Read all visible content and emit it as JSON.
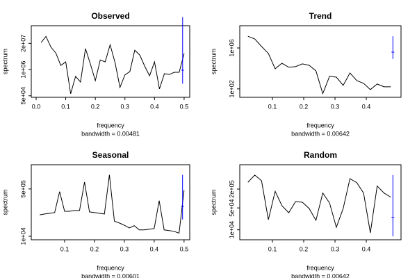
{
  "chart_data": [
    {
      "type": "line",
      "title": "Observed",
      "xlabel": "frequency",
      "ylabel": "spectrum",
      "subtitle": "bandwidth = 0.00481",
      "log_y": true,
      "color": "#000000",
      "x": [
        0.0167,
        0.0333,
        0.05,
        0.0667,
        0.0833,
        0.1,
        0.1167,
        0.1333,
        0.15,
        0.1667,
        0.1833,
        0.2,
        0.2167,
        0.2333,
        0.25,
        0.2667,
        0.2833,
        0.3,
        0.3167,
        0.3333,
        0.35,
        0.3667,
        0.3833,
        0.4,
        0.4167,
        0.4333,
        0.45,
        0.4667,
        0.4833,
        0.5
      ],
      "values": [
        22000000,
        44000000,
        13000000,
        6600000,
        1600000,
        2400000,
        63000,
        460000,
        240000,
        11000000,
        1900000,
        280000,
        3000000,
        2400000,
        17000000,
        2200000,
        130000,
        540000,
        800000,
        9100000,
        5300000,
        1500000,
        490000,
        2400000,
        110000,
        620000,
        570000,
        730000,
        730000,
        6200000
      ],
      "xlim": [
        -0.0164,
        0.519
      ],
      "ylim": [
        42000,
        150000000
      ],
      "xticks": [
        {
          "value": 0,
          "label": "0.0"
        },
        0.1,
        0.2,
        0.3,
        0.4,
        0.5
      ],
      "yticks": [
        {
          "value": 50000,
          "label": "5e+04"
        },
        {
          "value": 1000000,
          "label": "1e+06"
        },
        {
          "value": 20000000,
          "label": "2e+07"
        }
      ],
      "ci": {
        "x": 0.495,
        "lower": 200000,
        "center": 930000,
        "upper": 400000000,
        "color": "#0000ff"
      }
    },
    {
      "type": "line",
      "title": "Trend",
      "xlabel": "frequency",
      "ylabel": "spectrum",
      "subtitle": "bandwidth = 0.00642",
      "log_y": true,
      "color": "#000000",
      "x": [
        0.0217,
        0.0435,
        0.0652,
        0.087,
        0.1087,
        0.1304,
        0.1522,
        0.1739,
        0.1957,
        0.2174,
        0.2391,
        0.2609,
        0.2826,
        0.3043,
        0.3261,
        0.3478,
        0.3696,
        0.3913,
        0.413,
        0.4348,
        0.4565,
        0.4783
      ],
      "values": [
        14000000,
        7600000,
        1400000,
        290000,
        9300,
        32000,
        13000,
        15000,
        28000,
        20000,
        5800,
        34,
        1700,
        1400,
        220,
        3600,
        650,
        350,
        85,
        300,
        160,
        160
      ],
      "xlim": [
        -0.0044,
        0.511
      ],
      "ylim": [
        15,
        150000000
      ],
      "xticks": [
        0.1,
        0.2,
        0.3,
        0.4
      ],
      "yticks": [
        {
          "value": 100,
          "label": "1e+02"
        },
        {
          "value": 1000000,
          "label": "1e+06"
        }
      ],
      "ci": {
        "x": 0.485,
        "lower": 83000,
        "center": 390000,
        "upper": 14000000,
        "color": "#0000ff"
      }
    },
    {
      "type": "line",
      "title": "Seasonal",
      "xlabel": "frequency",
      "ylabel": "spectrum",
      "subtitle": "bandwidth = 0.00601",
      "log_y": true,
      "color": "#000000",
      "x": [
        0.0167,
        0.0333,
        0.05,
        0.0667,
        0.0833,
        0.1,
        0.1167,
        0.1333,
        0.15,
        0.1667,
        0.1833,
        0.2,
        0.2167,
        0.2333,
        0.25,
        0.2667,
        0.2833,
        0.3,
        0.3167,
        0.3333,
        0.35,
        0.3667,
        0.3833,
        0.4,
        0.4167,
        0.4333,
        0.45,
        0.4667,
        0.4833,
        0.5
      ],
      "values": [
        59000,
        63000,
        67000,
        71000,
        400000,
        79000,
        79000,
        84000,
        84000,
        890000,
        75000,
        71000,
        67000,
        63000,
        1600000,
        35000,
        30000,
        25000,
        20000,
        24000,
        17000,
        17000,
        18000,
        19000,
        190000,
        17000,
        16000,
        15000,
        13000,
        450000
      ],
      "xlim": [
        -0.0116,
        0.519
      ],
      "ylim": [
        7500,
        3700000
      ],
      "xticks": [
        0.1,
        0.2,
        0.3,
        0.4,
        0.5
      ],
      "yticks": [
        {
          "value": 10000,
          "label": "1e+04"
        },
        {
          "value": 500000,
          "label": "5e+05"
        }
      ],
      "ci": {
        "x": 0.495,
        "lower": 40000,
        "center": 120000,
        "upper": 1600000,
        "color": "#0000ff"
      }
    },
    {
      "type": "line",
      "title": "Random",
      "xlabel": "frequency",
      "ylabel": "spectrum",
      "subtitle": "bandwidth = 0.00642",
      "log_y": true,
      "color": "#000000",
      "x": [
        0.0217,
        0.0435,
        0.0652,
        0.087,
        0.1087,
        0.1304,
        0.1522,
        0.1739,
        0.1957,
        0.2174,
        0.2391,
        0.2609,
        0.2826,
        0.3043,
        0.3261,
        0.3478,
        0.3696,
        0.3913,
        0.413,
        0.4348,
        0.4565,
        0.4783
      ],
      "values": [
        330000,
        560000,
        370000,
        21000,
        170000,
        59000,
        35000,
        80000,
        76000,
        48000,
        20000,
        150000,
        72000,
        12000,
        48000,
        430000,
        320000,
        150000,
        8000,
        250000,
        150000,
        110000
      ],
      "xlim": [
        -0.0044,
        0.511
      ],
      "ylim": [
        4800,
        1200000
      ],
      "xticks": [
        0.1,
        0.2,
        0.3,
        0.4
      ],
      "yticks": [
        {
          "value": 10000,
          "label": "1e+04"
        },
        {
          "value": 50000,
          "label": "5e+04"
        },
        {
          "value": 200000,
          "label": "2e+05"
        }
      ],
      "ci": {
        "x": 0.485,
        "lower": 6200,
        "center": 25000,
        "upper": 560000,
        "color": "#0000ff"
      }
    }
  ]
}
